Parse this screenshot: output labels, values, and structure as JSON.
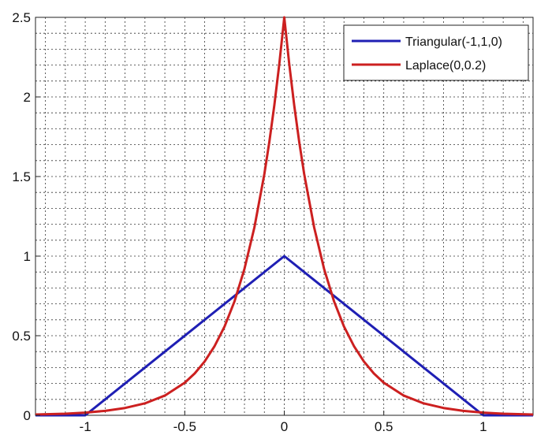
{
  "chart_data": {
    "type": "line",
    "title": "",
    "xlabel": "",
    "ylabel": "",
    "xlim": [
      -1.25,
      1.25
    ],
    "ylim": [
      0,
      2.5
    ],
    "grid": true,
    "grid_style": "dotted major and minor",
    "legend_position": "top-right",
    "x_ticks": [
      {
        "value": -1,
        "label": "-1"
      },
      {
        "value": -0.5,
        "label": "-0.5"
      },
      {
        "value": 0,
        "label": "0"
      },
      {
        "value": 0.5,
        "label": "0.5"
      },
      {
        "value": 1,
        "label": "1"
      }
    ],
    "y_ticks": [
      {
        "value": 0,
        "label": "0"
      },
      {
        "value": 0.5,
        "label": "0.5"
      },
      {
        "value": 1,
        "label": "1"
      },
      {
        "value": 1.5,
        "label": "1.5"
      },
      {
        "value": 2,
        "label": "2"
      },
      {
        "value": 2.5,
        "label": "2.5"
      }
    ],
    "series": [
      {
        "name": "Triangular(-1,1,0)",
        "color": "#1f1fb4",
        "x": [
          -1.25,
          -1.0,
          0.0,
          1.0,
          1.25
        ],
        "y": [
          0,
          0,
          1,
          0,
          0
        ]
      },
      {
        "name": "Laplace(0,0.2)",
        "color": "#cc2020",
        "x": [
          -1.25,
          -1.1,
          -1.0,
          -0.9,
          -0.8,
          -0.7,
          -0.6,
          -0.5,
          -0.45,
          -0.4,
          -0.35,
          -0.3,
          -0.25,
          -0.2,
          -0.15,
          -0.1,
          -0.075,
          -0.05,
          -0.025,
          0.0,
          0.025,
          0.05,
          0.075,
          0.1,
          0.15,
          0.2,
          0.25,
          0.3,
          0.35,
          0.4,
          0.45,
          0.5,
          0.6,
          0.7,
          0.8,
          0.9,
          1.0,
          1.1,
          1.25
        ],
        "y": [
          0.005,
          0.01,
          0.017,
          0.028,
          0.046,
          0.075,
          0.124,
          0.205,
          0.263,
          0.338,
          0.435,
          0.558,
          0.716,
          0.92,
          1.181,
          1.516,
          1.718,
          1.947,
          2.206,
          2.5,
          2.206,
          1.947,
          1.718,
          1.516,
          1.181,
          0.92,
          0.716,
          0.558,
          0.435,
          0.338,
          0.263,
          0.205,
          0.124,
          0.075,
          0.046,
          0.028,
          0.017,
          0.01,
          0.005
        ]
      }
    ]
  }
}
